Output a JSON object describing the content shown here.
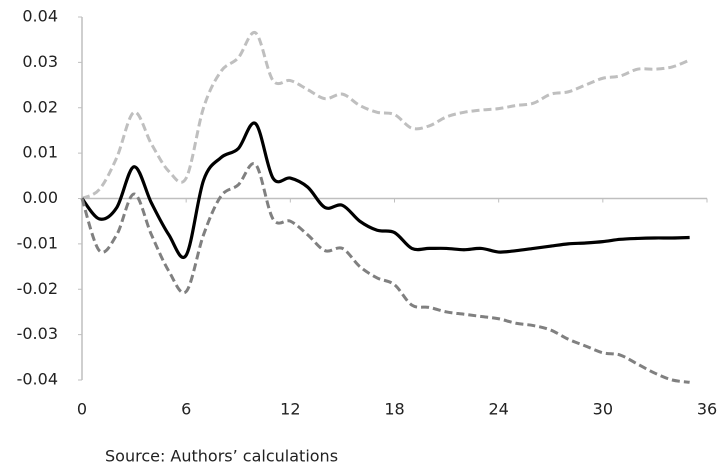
{
  "chart_data": {
    "type": "line",
    "x": [
      0,
      1,
      2,
      3,
      4,
      5,
      6,
      7,
      8,
      9,
      10,
      11,
      12,
      13,
      14,
      15,
      16,
      17,
      18,
      19,
      20,
      21,
      22,
      23,
      24,
      25,
      26,
      27,
      28,
      29,
      30,
      31,
      32,
      33,
      34,
      35
    ],
    "series": [
      {
        "color": "#bfbfbf",
        "dashed": true,
        "values": [
          0,
          0.002,
          0.009,
          0.019,
          0.012,
          0.006,
          0.0045,
          0.02,
          0.028,
          0.031,
          0.0365,
          0.026,
          0.026,
          0.024,
          0.022,
          0.023,
          0.0205,
          0.019,
          0.0185,
          0.0155,
          0.016,
          0.018,
          0.019,
          0.0195,
          0.0198,
          0.0205,
          0.021,
          0.023,
          0.0235,
          0.025,
          0.0265,
          0.027,
          0.0285,
          0.0285,
          0.029,
          0.0305
        ]
      },
      {
        "color": "#000000",
        "dashed": false,
        "values": [
          0,
          -0.0045,
          -0.002,
          0.007,
          -0.001,
          -0.008,
          -0.0125,
          0.004,
          0.009,
          0.011,
          0.0165,
          0.0045,
          0.0045,
          0.0025,
          -0.002,
          -0.0015,
          -0.005,
          -0.007,
          -0.0075,
          -0.011,
          -0.011,
          -0.011,
          -0.0113,
          -0.011,
          -0.0118,
          -0.0115,
          -0.011,
          -0.0105,
          -0.01,
          -0.0098,
          -0.0095,
          -0.009,
          -0.0088,
          -0.0087,
          -0.0087,
          -0.0086
        ]
      },
      {
        "color": "#808080",
        "dashed": true,
        "values": [
          0,
          -0.0115,
          -0.008,
          0.001,
          -0.008,
          -0.016,
          -0.0205,
          -0.008,
          0.0005,
          0.003,
          0.0075,
          -0.0045,
          -0.005,
          -0.008,
          -0.0115,
          -0.011,
          -0.015,
          -0.0175,
          -0.019,
          -0.0235,
          -0.024,
          -0.025,
          -0.0255,
          -0.026,
          -0.0265,
          -0.0275,
          -0.028,
          -0.029,
          -0.031,
          -0.0325,
          -0.034,
          -0.0345,
          -0.0365,
          -0.0385,
          -0.04,
          -0.0405
        ]
      }
    ],
    "xlim": [
      0,
      36
    ],
    "xticks": [
      0,
      6,
      12,
      18,
      24,
      30,
      36
    ],
    "ylim": [
      -0.04,
      0.04
    ],
    "yticks": [
      -0.04,
      -0.03,
      -0.02,
      -0.01,
      {
        "value": 0,
        "label": "0.00"
      },
      0.01,
      0.02,
      0.03,
      0.04
    ],
    "source": "Source: Authors’ calculations"
  }
}
